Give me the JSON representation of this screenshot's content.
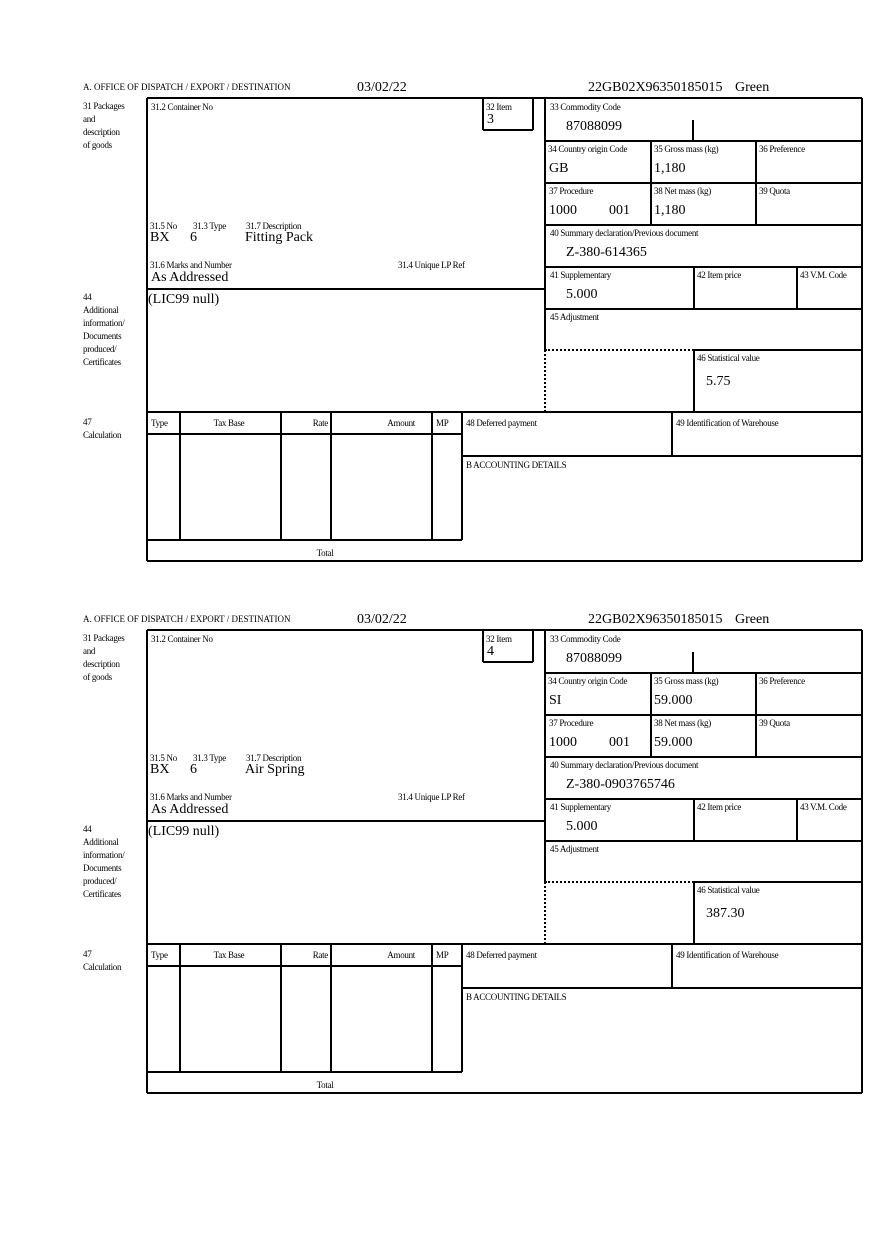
{
  "labels": {
    "office": "A.  OFFICE OF DISPATCH / EXPORT / DESTINATION",
    "packages": [
      "31 Packages",
      "and",
      "description",
      "of goods"
    ],
    "container_no": "31.2 Container No",
    "item": "32 Item",
    "no": "31.5 No",
    "type": "31.3 Type",
    "description": "31.7 Description",
    "marks": "31.6 Marks and Number",
    "unique_lp_ref": "31.4 Unique LP Ref",
    "additional": [
      "44",
      "Additional",
      "information/",
      "Documents",
      "produced/",
      "Certificates"
    ],
    "commodity_code": "33 Commodity Code",
    "country_origin": "34 Country origin Code",
    "gross_mass": "35 Gross mass (kg)",
    "preference": "36 Preference",
    "procedure": "37 Procedure",
    "net_mass": "38 Net mass (kg)",
    "quota": "39 Quota",
    "summary_declaration": "40 Summary declaration/Previous document",
    "supplementary": "41 Supplementary",
    "item_price": "42 Item price",
    "vm_code": "43 V.M. Code",
    "adjustment": "45 Adjustment",
    "statistical_value": "46 Statistical value",
    "calculation": [
      "47",
      "Calculation"
    ],
    "calc_columns": [
      "Type",
      "Tax Base",
      "Rate",
      "Amount",
      "MP"
    ],
    "deferred_payment": "48 Deferred payment",
    "warehouse": "49 Identification of Warehouse",
    "accounting": "B ACCOUNTING DETAILS",
    "total": "Total"
  },
  "items": [
    {
      "date": "03/02/22",
      "reference": "22GB02X96350185015",
      "route": "Green",
      "item_no": "3",
      "no": "BX",
      "type": "6",
      "description": "Fitting Pack",
      "marks": "As Addressed",
      "additional_info": "(LIC99 null)",
      "commodity_code": "87088099",
      "country_origin": "GB",
      "gross_mass": "1,180",
      "procedure": "1000",
      "procedure_code": "001",
      "net_mass": "1,180",
      "previous_document": "Z-380-614365",
      "supplementary": "5.000",
      "statistical_value": "5.75"
    },
    {
      "date": "03/02/22",
      "reference": "22GB02X96350185015",
      "route": "Green",
      "item_no": "4",
      "no": "BX",
      "type": "6",
      "description": "Air Spring",
      "marks": "As Addressed",
      "additional_info": "(LIC99 null)",
      "commodity_code": "87088099",
      "country_origin": "SI",
      "gross_mass": "59.000",
      "procedure": "1000",
      "procedure_code": "001",
      "net_mass": "59.000",
      "previous_document": "Z-380-0903765746",
      "supplementary": "5.000",
      "statistical_value": "387.30"
    }
  ]
}
